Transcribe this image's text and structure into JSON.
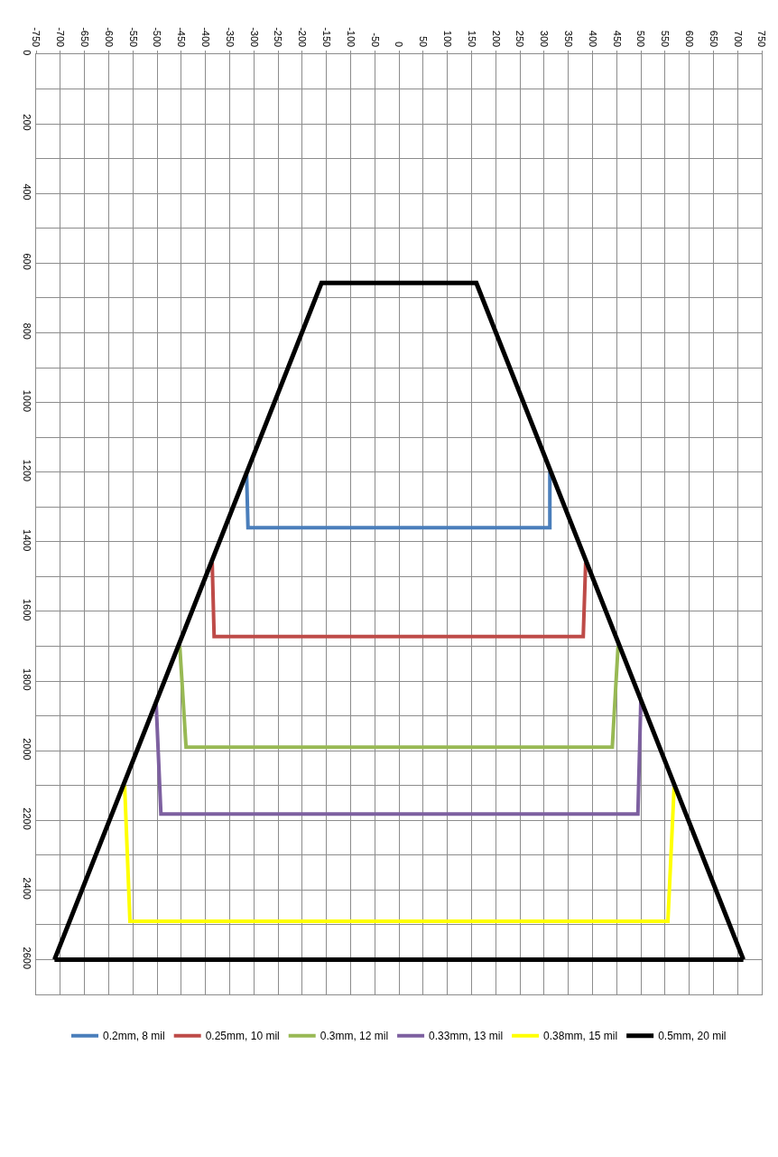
{
  "chart_data": {
    "type": "line",
    "xlim": [
      -750,
      750
    ],
    "xticks": [
      -750,
      -700,
      -650,
      -600,
      -550,
      -500,
      -450,
      -400,
      -350,
      -300,
      -250,
      -200,
      -150,
      -100,
      -50,
      0,
      50,
      100,
      150,
      200,
      250,
      300,
      350,
      400,
      450,
      500,
      550,
      600,
      650,
      700,
      750
    ],
    "ylim": [
      2700,
      0
    ],
    "yticks": [
      0,
      {
        "value": 100,
        "label": null
      },
      200,
      {
        "value": 300,
        "label": null
      },
      400,
      {
        "value": 500,
        "label": null
      },
      600,
      {
        "value": 700,
        "label": null
      },
      800,
      {
        "value": 900,
        "label": null
      },
      1000,
      {
        "value": 1100,
        "label": null
      },
      1200,
      {
        "value": 1300,
        "label": null
      },
      1400,
      {
        "value": 1500,
        "label": null
      },
      1600,
      {
        "value": 1700,
        "label": null
      },
      1800,
      {
        "value": 1900,
        "label": null
      },
      2000,
      {
        "value": 2100,
        "label": null
      },
      2200,
      {
        "value": 2300,
        "label": null
      },
      2400,
      {
        "value": 2500,
        "label": null
      },
      2600
    ],
    "grid": true,
    "legend": "bottom",
    "marker": "none",
    "line_style": "solid",
    "series": [
      {
        "name": "0.2mm, 8 mil",
        "color": "#4a7ebb",
        "x": [
          -315,
          -312,
          312,
          312
        ],
        "values": [
          1200,
          1360,
          1360,
          1200
        ]
      },
      {
        "name": "0.25mm, 10 mil",
        "color": "#be4b48",
        "x": [
          -386,
          -382,
          381,
          386
        ],
        "values": [
          1460,
          1672,
          1672,
          1460
        ]
      },
      {
        "name": "0.3mm, 12 mil",
        "color": "#98b954",
        "x": [
          -453,
          -440,
          441,
          453
        ],
        "values": [
          1700,
          1990,
          1990,
          1700
        ]
      },
      {
        "name": "0.33mm, 13 mil",
        "color": "#7d60a0",
        "x": [
          -502,
          -492,
          494,
          500
        ],
        "values": [
          1860,
          2182,
          2182,
          1860
        ]
      },
      {
        "name": "0.38mm, 15 mil",
        "color": "#ffff00",
        "x": [
          -567,
          -556,
          556,
          569
        ],
        "values": [
          2100,
          2490,
          2490,
          2100
        ]
      },
      {
        "name": "0.5mm, 20 mil",
        "color": "#000000",
        "x": [
          -712,
          -160,
          160,
          712
        ],
        "values": [
          2600,
          657,
          657,
          2600
        ]
      },
      {
        "color": "#000000",
        "x": [
          -712,
          712
        ],
        "values": [
          2600,
          2600
        ]
      }
    ]
  }
}
